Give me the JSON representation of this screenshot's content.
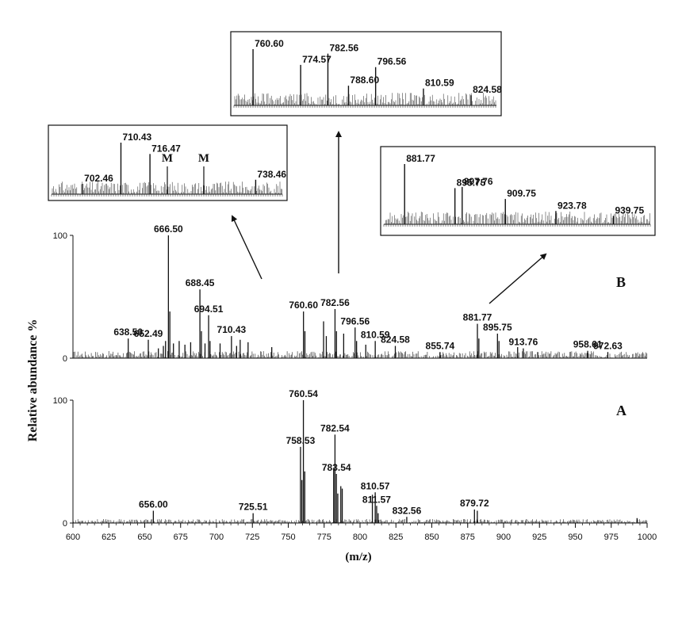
{
  "chart_data": {
    "type": "line",
    "xlabel": "(m/z)",
    "ylabel": "Relative abundance %",
    "xlim": [
      600,
      1000
    ],
    "x_ticks": [
      "600",
      "625",
      "650",
      "675",
      "700",
      "725",
      "750",
      "775",
      "800",
      "825",
      "850",
      "875",
      "900",
      "925",
      "950",
      "975",
      "1000"
    ],
    "y_ticks": [
      "0",
      "100"
    ],
    "panels": [
      {
        "id": "B",
        "panel_label": "B",
        "ylim": [
          0,
          100
        ],
        "peaks": [
          {
            "mz": 638.5,
            "y": 16,
            "label": "638.50"
          },
          {
            "mz": 652.49,
            "y": 15,
            "label": "652.49"
          },
          {
            "mz": 659.5,
            "y": 8
          },
          {
            "mz": 663.0,
            "y": 10
          },
          {
            "mz": 664.5,
            "y": 14
          },
          {
            "mz": 666.5,
            "y": 100,
            "label": "666.50"
          },
          {
            "mz": 667.5,
            "y": 38
          },
          {
            "mz": 670.0,
            "y": 12
          },
          {
            "mz": 674.0,
            "y": 14
          },
          {
            "mz": 678.0,
            "y": 11
          },
          {
            "mz": 682.0,
            "y": 13
          },
          {
            "mz": 688.45,
            "y": 56,
            "label": "688.45"
          },
          {
            "mz": 689.5,
            "y": 22
          },
          {
            "mz": 692.0,
            "y": 12
          },
          {
            "mz": 694.51,
            "y": 35,
            "label": "694.51"
          },
          {
            "mz": 695.5,
            "y": 14
          },
          {
            "mz": 702.5,
            "y": 12
          },
          {
            "mz": 710.43,
            "y": 18,
            "label": "710.43"
          },
          {
            "mz": 714.0,
            "y": 10
          },
          {
            "mz": 716.5,
            "y": 15
          },
          {
            "mz": 722.0,
            "y": 13
          },
          {
            "mz": 738.5,
            "y": 9
          },
          {
            "mz": 760.6,
            "y": 38,
            "label": "760.60"
          },
          {
            "mz": 761.6,
            "y": 22
          },
          {
            "mz": 774.6,
            "y": 30
          },
          {
            "mz": 776.5,
            "y": 18
          },
          {
            "mz": 782.56,
            "y": 40,
            "label": "782.56"
          },
          {
            "mz": 783.6,
            "y": 22
          },
          {
            "mz": 788.6,
            "y": 20
          },
          {
            "mz": 796.56,
            "y": 25,
            "label": "796.56"
          },
          {
            "mz": 797.6,
            "y": 14
          },
          {
            "mz": 804.0,
            "y": 11
          },
          {
            "mz": 810.59,
            "y": 14,
            "label": "810.59"
          },
          {
            "mz": 824.58,
            "y": 10,
            "label": "824.58"
          },
          {
            "mz": 855.74,
            "y": 5,
            "label": "855.74"
          },
          {
            "mz": 881.77,
            "y": 28,
            "label": "881.77"
          },
          {
            "mz": 882.8,
            "y": 16
          },
          {
            "mz": 895.75,
            "y": 20,
            "label": "895.75"
          },
          {
            "mz": 896.8,
            "y": 14
          },
          {
            "mz": 909.8,
            "y": 9
          },
          {
            "mz": 913.76,
            "y": 8,
            "label": "913.76"
          },
          {
            "mz": 923.8,
            "y": 5
          },
          {
            "mz": 958.61,
            "y": 6,
            "label": "958.61"
          },
          {
            "mz": 972.63,
            "y": 5,
            "label": "972.63"
          }
        ]
      },
      {
        "id": "A",
        "panel_label": "A",
        "ylim": [
          0,
          100
        ],
        "peaks": [
          {
            "mz": 656.0,
            "y": 10,
            "label": "656.00"
          },
          {
            "mz": 725.51,
            "y": 8,
            "label": "725.51"
          },
          {
            "mz": 758.53,
            "y": 62,
            "label": "758.53"
          },
          {
            "mz": 759.5,
            "y": 35
          },
          {
            "mz": 760.54,
            "y": 100,
            "label": "760.54"
          },
          {
            "mz": 761.5,
            "y": 42
          },
          {
            "mz": 782.54,
            "y": 72,
            "label": "782.54"
          },
          {
            "mz": 781.6,
            "y": 45
          },
          {
            "mz": 783.54,
            "y": 40,
            "label": "783.54"
          },
          {
            "mz": 784.5,
            "y": 24
          },
          {
            "mz": 786.6,
            "y": 30
          },
          {
            "mz": 787.6,
            "y": 28
          },
          {
            "mz": 808.6,
            "y": 23
          },
          {
            "mz": 810.57,
            "y": 25,
            "label": "810.57"
          },
          {
            "mz": 811.57,
            "y": 14,
            "label": "811.57"
          },
          {
            "mz": 812.6,
            "y": 8
          },
          {
            "mz": 832.56,
            "y": 5,
            "label": "832.56"
          },
          {
            "mz": 879.72,
            "y": 11,
            "label": "879.72"
          },
          {
            "mz": 881.7,
            "y": 10
          },
          {
            "mz": 993.0,
            "y": 4
          }
        ]
      }
    ],
    "insets": [
      {
        "id": "inset-left",
        "peaks": [
          {
            "mz": 702.46,
            "y": 20,
            "label": "702.46"
          },
          {
            "mz": 710.43,
            "y": 100,
            "label": "710.43"
          },
          {
            "mz": 716.47,
            "y": 78,
            "label": "716.47"
          },
          {
            "mz": 738.46,
            "y": 28,
            "label": "738.46"
          }
        ],
        "markers": [
          "M",
          "M"
        ]
      },
      {
        "id": "inset-top",
        "peaks": [
          {
            "mz": 760.6,
            "y": 100,
            "label": "760.60"
          },
          {
            "mz": 774.57,
            "y": 72,
            "label": "774.57"
          },
          {
            "mz": 782.56,
            "y": 92,
            "label": "782.56"
          },
          {
            "mz": 788.6,
            "y": 35,
            "label": "788.60"
          },
          {
            "mz": 796.56,
            "y": 68,
            "label": "796.56"
          },
          {
            "mz": 810.59,
            "y": 30,
            "label": "810.59"
          },
          {
            "mz": 824.58,
            "y": 18,
            "label": "824.58"
          }
        ]
      },
      {
        "id": "inset-right",
        "peaks": [
          {
            "mz": 881.77,
            "y": 100,
            "label": "881.77"
          },
          {
            "mz": 895.75,
            "y": 60,
            "label": "895.75"
          },
          {
            "mz": 897.76,
            "y": 62,
            "label": "897.76"
          },
          {
            "mz": 909.75,
            "y": 42,
            "label": "909.75"
          },
          {
            "mz": 923.78,
            "y": 22,
            "label": "923.78"
          },
          {
            "mz": 939.75,
            "y": 14,
            "label": "939.75"
          }
        ]
      }
    ]
  }
}
